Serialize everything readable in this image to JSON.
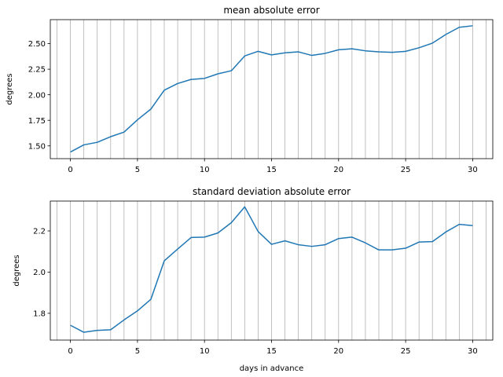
{
  "chart_data": [
    {
      "type": "line",
      "title": "mean absolute error",
      "xlabel": "",
      "ylabel": "degrees",
      "xlim": [
        -1.5,
        31.5
      ],
      "ylim": [
        1.375,
        2.735
      ],
      "xticks": [
        0,
        5,
        10,
        15,
        20,
        25,
        30
      ],
      "yticks": [
        1.5,
        1.75,
        2.0,
        2.25,
        2.5
      ],
      "ytick_labels": [
        "1.50",
        "1.75",
        "2.00",
        "2.25",
        "2.50"
      ],
      "vertical_gridlines_every": 1,
      "line_color": "#1f77b4",
      "x": [
        0,
        1,
        2,
        3,
        4,
        5,
        6,
        7,
        8,
        9,
        10,
        11,
        12,
        13,
        14,
        15,
        16,
        17,
        18,
        19,
        20,
        21,
        22,
        23,
        24,
        25,
        26,
        27,
        28,
        29,
        30
      ],
      "y": [
        1.44,
        1.51,
        1.535,
        1.59,
        1.635,
        1.755,
        1.86,
        2.045,
        2.11,
        2.15,
        2.16,
        2.205,
        2.235,
        2.38,
        2.425,
        2.39,
        2.41,
        2.42,
        2.385,
        2.405,
        2.44,
        2.45,
        2.43,
        2.42,
        2.415,
        2.425,
        2.46,
        2.505,
        2.59,
        2.66,
        2.675
      ]
    },
    {
      "type": "line",
      "title": "standard deviation absolute error",
      "xlabel": "days in advance",
      "ylabel": "degrees",
      "xlim": [
        -1.5,
        31.5
      ],
      "ylim": [
        1.67,
        2.345
      ],
      "xticks": [
        0,
        5,
        10,
        15,
        20,
        25,
        30
      ],
      "yticks": [
        1.8,
        2.0,
        2.2
      ],
      "ytick_labels": [
        "1.8",
        "2.0",
        "2.2"
      ],
      "vertical_gridlines_every": 1,
      "line_color": "#1f77b4",
      "x": [
        0,
        1,
        2,
        3,
        4,
        5,
        6,
        7,
        8,
        9,
        10,
        11,
        12,
        13,
        14,
        15,
        16,
        17,
        18,
        19,
        20,
        21,
        22,
        23,
        24,
        25,
        26,
        27,
        28,
        29,
        30
      ],
      "y": [
        1.742,
        1.708,
        1.717,
        1.72,
        1.768,
        1.812,
        1.868,
        2.055,
        2.112,
        2.168,
        2.17,
        2.19,
        2.24,
        2.317,
        2.197,
        2.135,
        2.152,
        2.133,
        2.125,
        2.133,
        2.163,
        2.17,
        2.142,
        2.108,
        2.108,
        2.116,
        2.146,
        2.148,
        2.195,
        2.232,
        2.226
      ]
    }
  ]
}
